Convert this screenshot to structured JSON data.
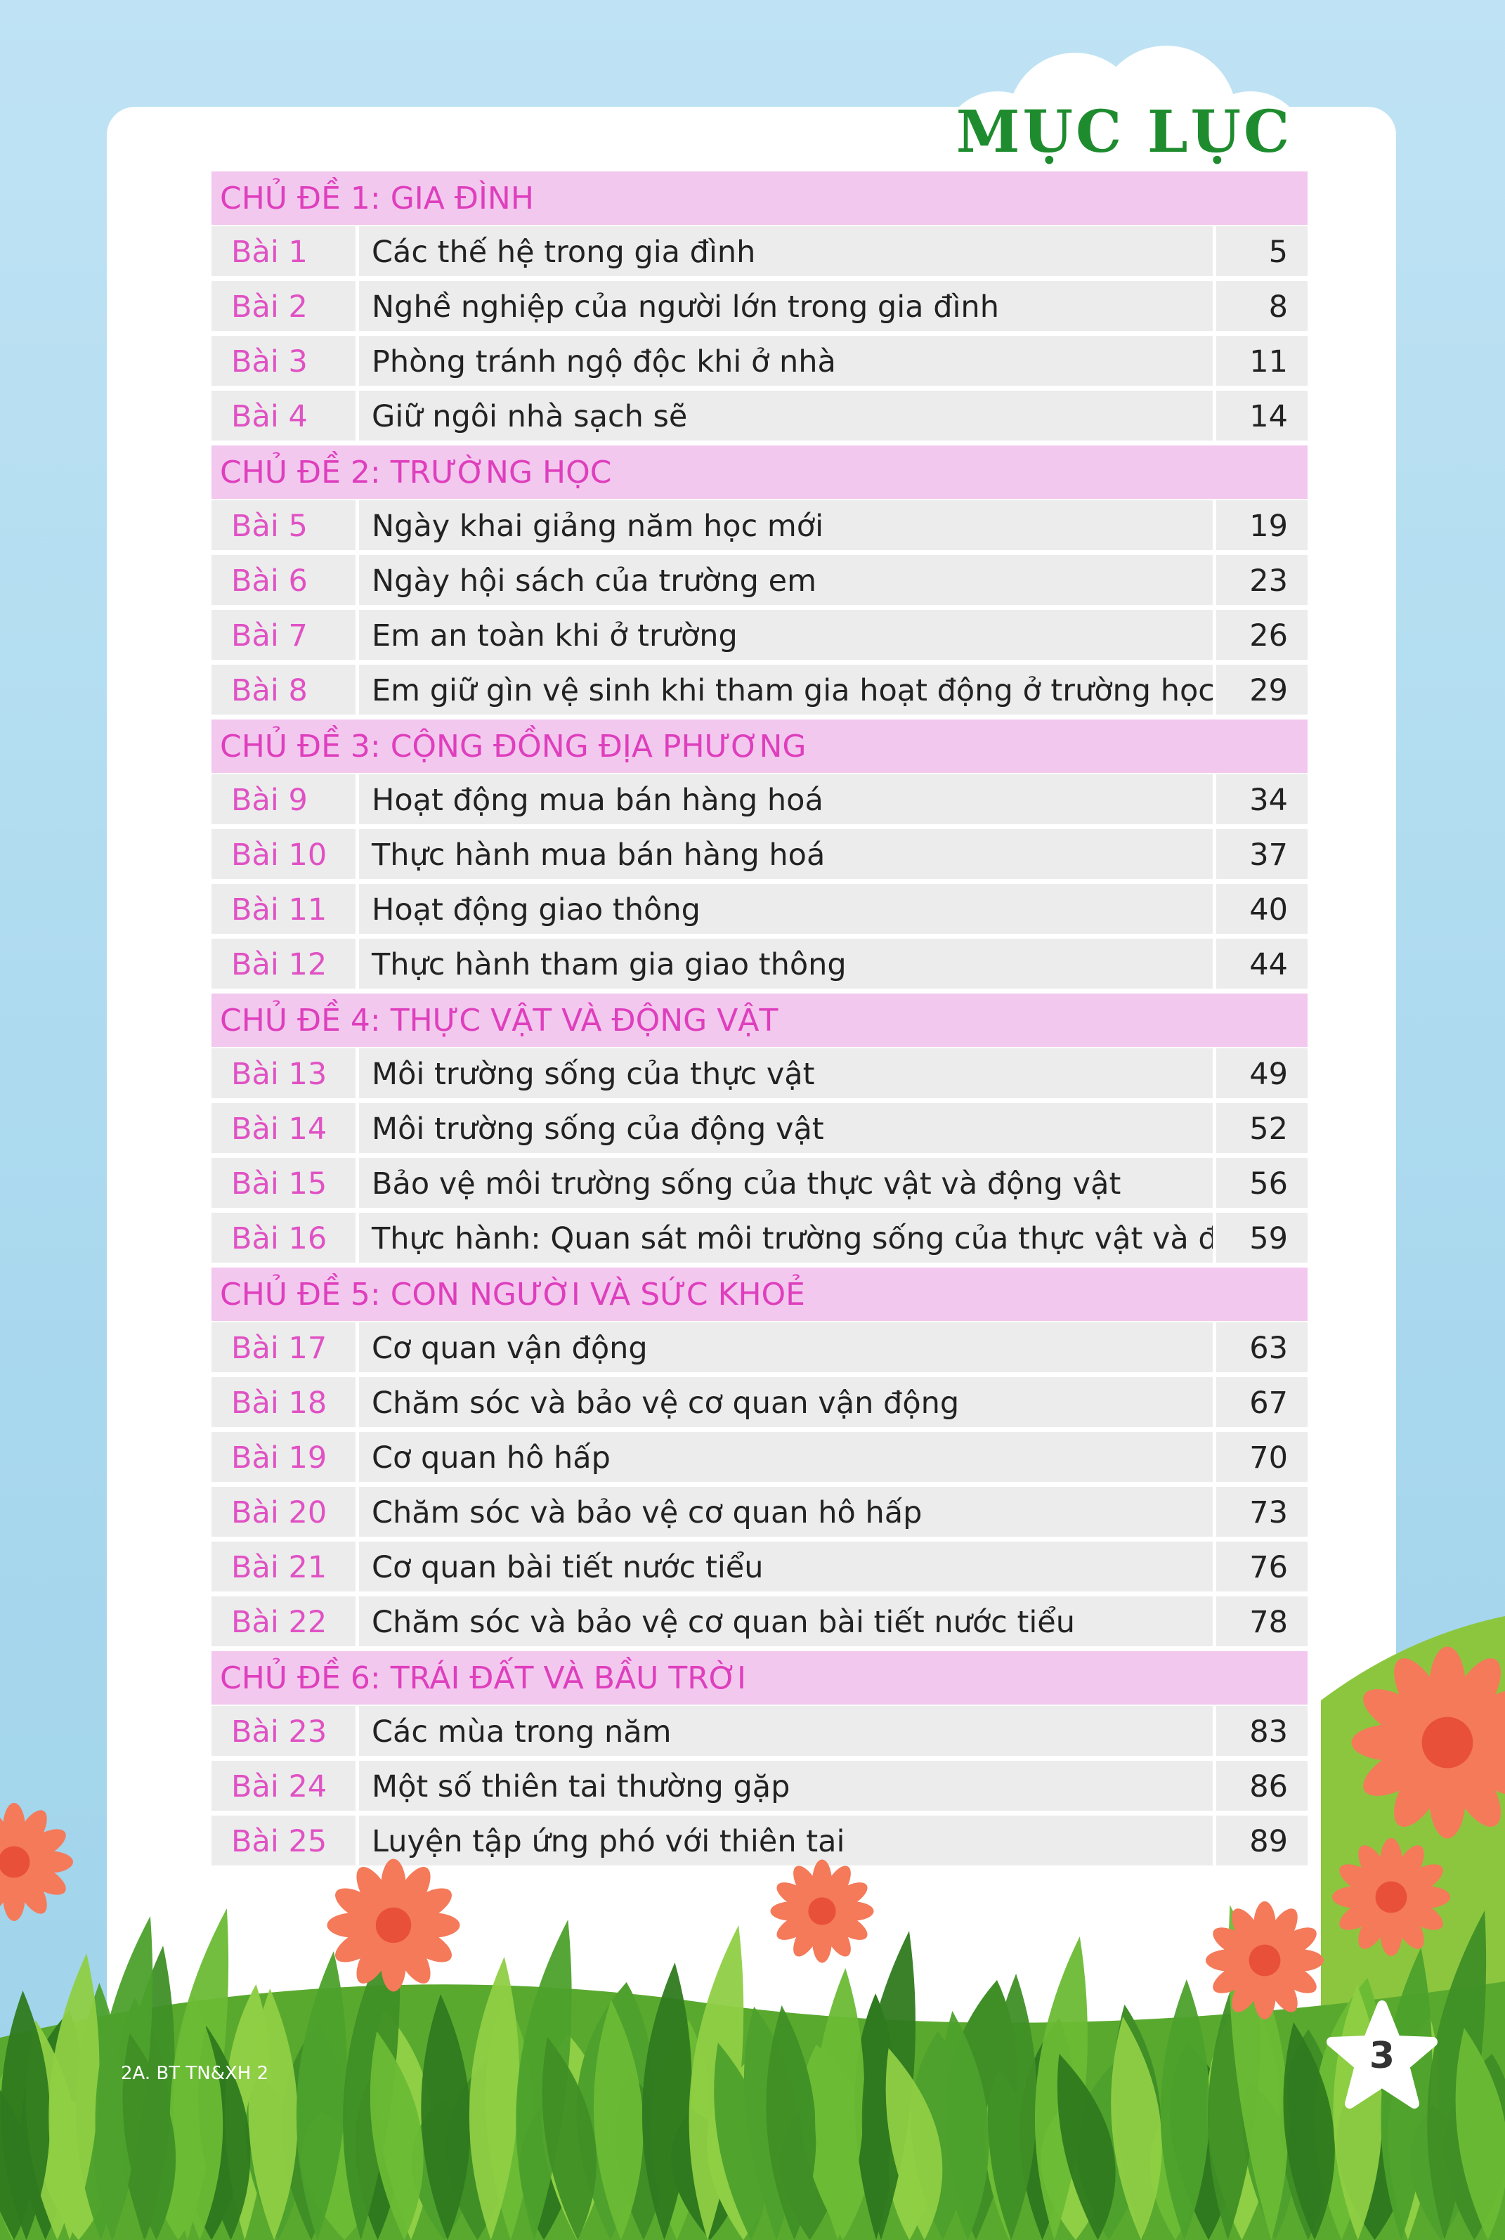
{
  "title": "MỤC LỤC",
  "sections": [
    {
      "heading": "CHỦ ĐỀ 1: GIA ĐÌNH",
      "lessons": [
        {
          "label": "Bài 1",
          "title": "Các thế hệ trong gia đình",
          "page": 5
        },
        {
          "label": "Bài 2",
          "title": "Nghề nghiệp của người lớn trong gia đình",
          "page": 8
        },
        {
          "label": "Bài 3",
          "title": "Phòng tránh ngộ độc khi ở nhà",
          "page": 11
        },
        {
          "label": "Bài 4",
          "title": "Giữ ngôi nhà sạch sẽ",
          "page": 14
        }
      ]
    },
    {
      "heading": "CHỦ ĐỀ 2: TRƯỜNG HỌC",
      "lessons": [
        {
          "label": "Bài 5",
          "title": "Ngày khai giảng năm học mới",
          "page": 19
        },
        {
          "label": "Bài 6",
          "title": "Ngày hội sách của trường em",
          "page": 23
        },
        {
          "label": "Bài 7",
          "title": "Em an toàn khi ở trường",
          "page": 26
        },
        {
          "label": "Bài 8",
          "title": "Em giữ gìn vệ sinh khi tham gia hoạt động ở trường học",
          "page": 29
        }
      ]
    },
    {
      "heading": "CHỦ ĐỀ 3: CỘNG ĐỒNG ĐỊA PHƯƠNG",
      "lessons": [
        {
          "label": "Bài 9",
          "title": "Hoạt động mua bán hàng hoá",
          "page": 34
        },
        {
          "label": "Bài 10",
          "title": "Thực hành mua bán hàng hoá",
          "page": 37
        },
        {
          "label": "Bài 11",
          "title": "Hoạt động giao thông",
          "page": 40
        },
        {
          "label": "Bài 12",
          "title": "Thực hành tham gia giao thông",
          "page": 44
        }
      ]
    },
    {
      "heading": "CHỦ ĐỀ 4: THỰC VẬT VÀ ĐỘNG VẬT",
      "lessons": [
        {
          "label": "Bài 13",
          "title": "Môi trường sống của thực vật",
          "page": 49
        },
        {
          "label": "Bài 14",
          "title": "Môi trường sống của động vật",
          "page": 52
        },
        {
          "label": "Bài 15",
          "title": "Bảo vệ môi trường sống của thực vật và động vật",
          "page": 56
        },
        {
          "label": "Bài 16",
          "title": "Thực hành: Quan sát môi trường sống của thực vật và động vật",
          "page": 59
        }
      ]
    },
    {
      "heading": "CHỦ ĐỀ 5: CON NGƯỜI VÀ SỨC KHOẺ",
      "lessons": [
        {
          "label": "Bài 17",
          "title": "Cơ quan vận động",
          "page": 63
        },
        {
          "label": "Bài 18",
          "title": "Chăm sóc và bảo vệ cơ quan vận động",
          "page": 67
        },
        {
          "label": "Bài 19",
          "title": "Cơ quan hô hấp",
          "page": 70
        },
        {
          "label": "Bài 20",
          "title": "Chăm sóc và bảo vệ cơ quan hô hấp",
          "page": 73
        },
        {
          "label": "Bài 21",
          "title": "Cơ quan bài tiết nước tiểu",
          "page": 76
        },
        {
          "label": "Bài 22",
          "title": "Chăm sóc và bảo vệ cơ quan bài tiết nước tiểu",
          "page": 78
        }
      ]
    },
    {
      "heading": "CHỦ ĐỀ 6: TRÁI ĐẤT VÀ BẦU TRỜI",
      "lessons": [
        {
          "label": "Bài 23",
          "title": "Các mùa trong năm",
          "page": 83
        },
        {
          "label": "Bài 24",
          "title": "Một số thiên tai thường gặp",
          "page": 86
        },
        {
          "label": "Bài 25",
          "title": "Luyện tập ứng phó với thiên tai",
          "page": 89
        }
      ]
    }
  ],
  "footer": {
    "code": "2A. BT TN&XH 2",
    "page_number": 3
  }
}
